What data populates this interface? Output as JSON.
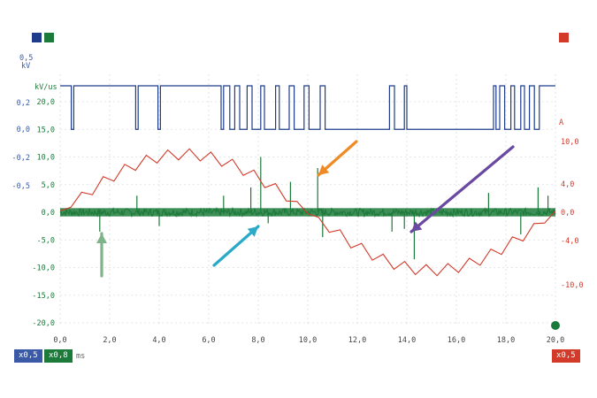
{
  "colors": {
    "blue": "#1f3c8c",
    "green": "#1c7a3a",
    "red": "#d33a2a",
    "orange_arrow": "#f08a24",
    "purple_arrow": "#6a4aa0",
    "cyan_arrow": "#2aaac8",
    "lightgreen_arrow": "#7fb48a"
  },
  "channel_squares": [
    "blue",
    "green",
    "red"
  ],
  "badges": {
    "blue": "x0,5",
    "green": "x0,8",
    "red": "x0,5",
    "time_unit": "ms"
  },
  "left_units": {
    "top": "0,5",
    "kv": "kV",
    "kvus": "kV/us"
  },
  "right_unit": "A",
  "chart_data": {
    "type": "line",
    "grid": true,
    "xlabel": "ms",
    "xlim": [
      0,
      20
    ],
    "x_ticks": [
      "0,0",
      "2,0",
      "4,0",
      "6,0",
      "8,0",
      "10,0",
      "12,0",
      "14,0",
      "16,0",
      "18,0",
      "20,0"
    ],
    "left_axis_green": [
      "20,0",
      "15,0",
      "10,0",
      "5,0",
      "0,0",
      "-5,0",
      "-10,0",
      "-15,0",
      "-20,0"
    ],
    "left_axis_blue": [
      "0,5",
      "0,2",
      "0,0",
      "-0,2",
      "-0,5"
    ],
    "right_axis_red": [
      "10,0",
      "4,0",
      "0,0",
      "-4,0",
      "-10,0"
    ],
    "ylim": [
      -20,
      20
    ],
    "series": [
      {
        "color": "blue",
        "kind": "pwm",
        "high": 20,
        "low": 15,
        "low_intervals": [
          [
            0.45,
            0.55
          ],
          [
            3.05,
            3.15
          ],
          [
            3.95,
            4.05
          ],
          [
            6.5,
            6.6
          ],
          [
            6.85,
            7.05
          ],
          [
            7.25,
            7.55
          ],
          [
            7.75,
            8.1
          ],
          [
            8.25,
            8.7
          ],
          [
            8.85,
            9.25
          ],
          [
            9.45,
            9.85
          ],
          [
            10.05,
            10.5
          ],
          [
            10.7,
            13.3
          ],
          [
            13.5,
            13.9
          ],
          [
            14.0,
            17.5
          ],
          [
            17.6,
            17.75
          ],
          [
            17.95,
            18.2
          ],
          [
            18.35,
            18.6
          ],
          [
            18.75,
            18.95
          ],
          [
            19.15,
            19.35
          ]
        ]
      },
      {
        "color": "red",
        "kind": "sawtooth-sine",
        "amplitude": 10.5,
        "period_ms": 20,
        "ripple": 2.0
      },
      {
        "color": "green",
        "kind": "noise",
        "base": 0,
        "spikes": [
          [
            1.6,
            -3.5
          ],
          [
            3.1,
            3.0
          ],
          [
            4.0,
            -2.5
          ],
          [
            6.6,
            3.0
          ],
          [
            7.7,
            4.5
          ],
          [
            8.1,
            10.0
          ],
          [
            8.4,
            -2.0
          ],
          [
            9.3,
            5.5
          ],
          [
            10.4,
            8.0
          ],
          [
            10.6,
            -4.5
          ],
          [
            13.4,
            -3.5
          ],
          [
            13.9,
            -3.0
          ],
          [
            14.3,
            -8.5
          ],
          [
            17.3,
            3.5
          ],
          [
            18.6,
            -4.0
          ],
          [
            19.3,
            4.5
          ],
          [
            19.7,
            3.0
          ]
        ]
      }
    ]
  }
}
